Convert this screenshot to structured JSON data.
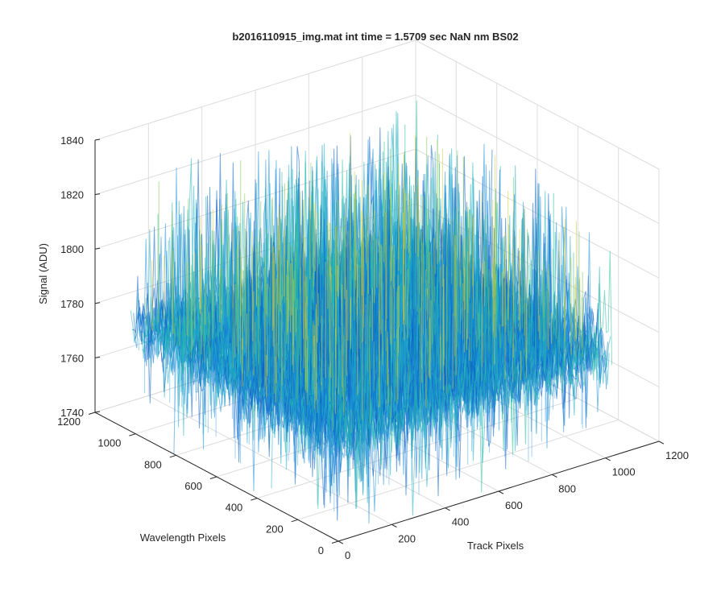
{
  "chart_data": {
    "type": "surface",
    "title": "b2016110915_img.mat int time = 1.5709 sec  NaN nm BS02",
    "xlabel": "Track Pixels",
    "ylabel": "Wavelength Pixels",
    "zlabel": "Signal (ADU)",
    "xlim": [
      0,
      1200
    ],
    "ylim": [
      0,
      1200
    ],
    "zlim": [
      1740,
      1840
    ],
    "xticks": [
      "0",
      "200",
      "400",
      "600",
      "800",
      "1000",
      "1200"
    ],
    "yticks": [
      "0",
      "200",
      "400",
      "600",
      "800",
      "1000",
      "1200"
    ],
    "zticks": [
      "1740",
      "1760",
      "1780",
      "1800",
      "1820",
      "1840"
    ],
    "data_extent": {
      "x": [
        0,
        1024
      ],
      "y": [
        0,
        1024
      ]
    },
    "signal_mean": 1778,
    "signal_noise_range": [
      1745,
      1830
    ],
    "colormap": [
      "#0d62c7",
      "#1b8fd9",
      "#1fb0c2",
      "#2dc0a0",
      "#86c760",
      "#d7cf3a"
    ],
    "grid": true
  }
}
